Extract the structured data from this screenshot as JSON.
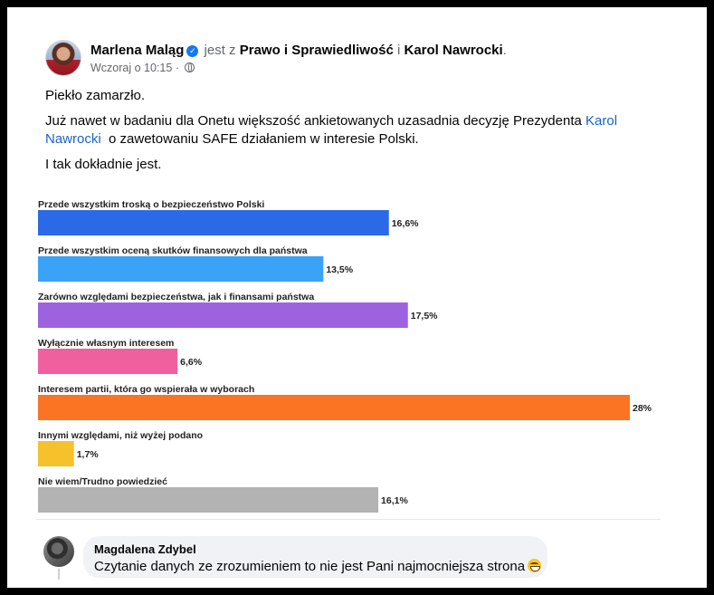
{
  "post": {
    "author": "Marlena Maląg",
    "with_text": "jest z",
    "tag1": "Prawo i Sprawiedliwość",
    "and_text": "i",
    "tag2": "Karol Nawrocki",
    "end_punct": ".",
    "time": "Wczoraj o 10:15",
    "separator": "·",
    "para1": "Piekło zamarzło.",
    "para2_before": "Już nawet w badaniu dla Onetu większość ankietowanych uzasadnia decyzję Prezydenta",
    "para2_link": "Karol Nawrocki",
    "para2_after": "o zawetowaniu SAFE działaniem w interesie Polski.",
    "para3": "I tak dokładnie jest."
  },
  "chart_data": {
    "type": "bar",
    "orientation": "horizontal",
    "title": "",
    "categories": [
      "Przede wszystkim troską o bezpieczeństwo Polski",
      "Przede wszystkim oceną skutków finansowych dla państwa",
      "Zarówno względami bezpieczeństwa, jak i finansami państwa",
      "Wyłącznie własnym interesem",
      "Interesem partii, która go wspierała w wyborach",
      "Innymi względami, niż wyżej podano",
      "Nie wiem/Trudno powiedzieć"
    ],
    "values": [
      16.6,
      13.5,
      17.5,
      6.6,
      28,
      1.7,
      16.1
    ],
    "value_labels": [
      "16,6%",
      "13,5%",
      "17,5%",
      "6,6%",
      "28%",
      "1,7%",
      "16,1%"
    ],
    "colors": [
      "#2b6ae6",
      "#3aa3f7",
      "#9e62de",
      "#f0609e",
      "#fb7424",
      "#f6c22b",
      "#b3b3b3"
    ],
    "xlim": [
      0,
      28
    ]
  },
  "comment": {
    "author": "Magdalena Zdybel",
    "text": "Czytanie danych ze zrozumieniem to nie jest Pani najmocniejsza strona"
  },
  "icons": {
    "verified": "verified-badge-icon",
    "globe": "public-globe-icon",
    "emoji": "grinning-emoji-icon"
  }
}
